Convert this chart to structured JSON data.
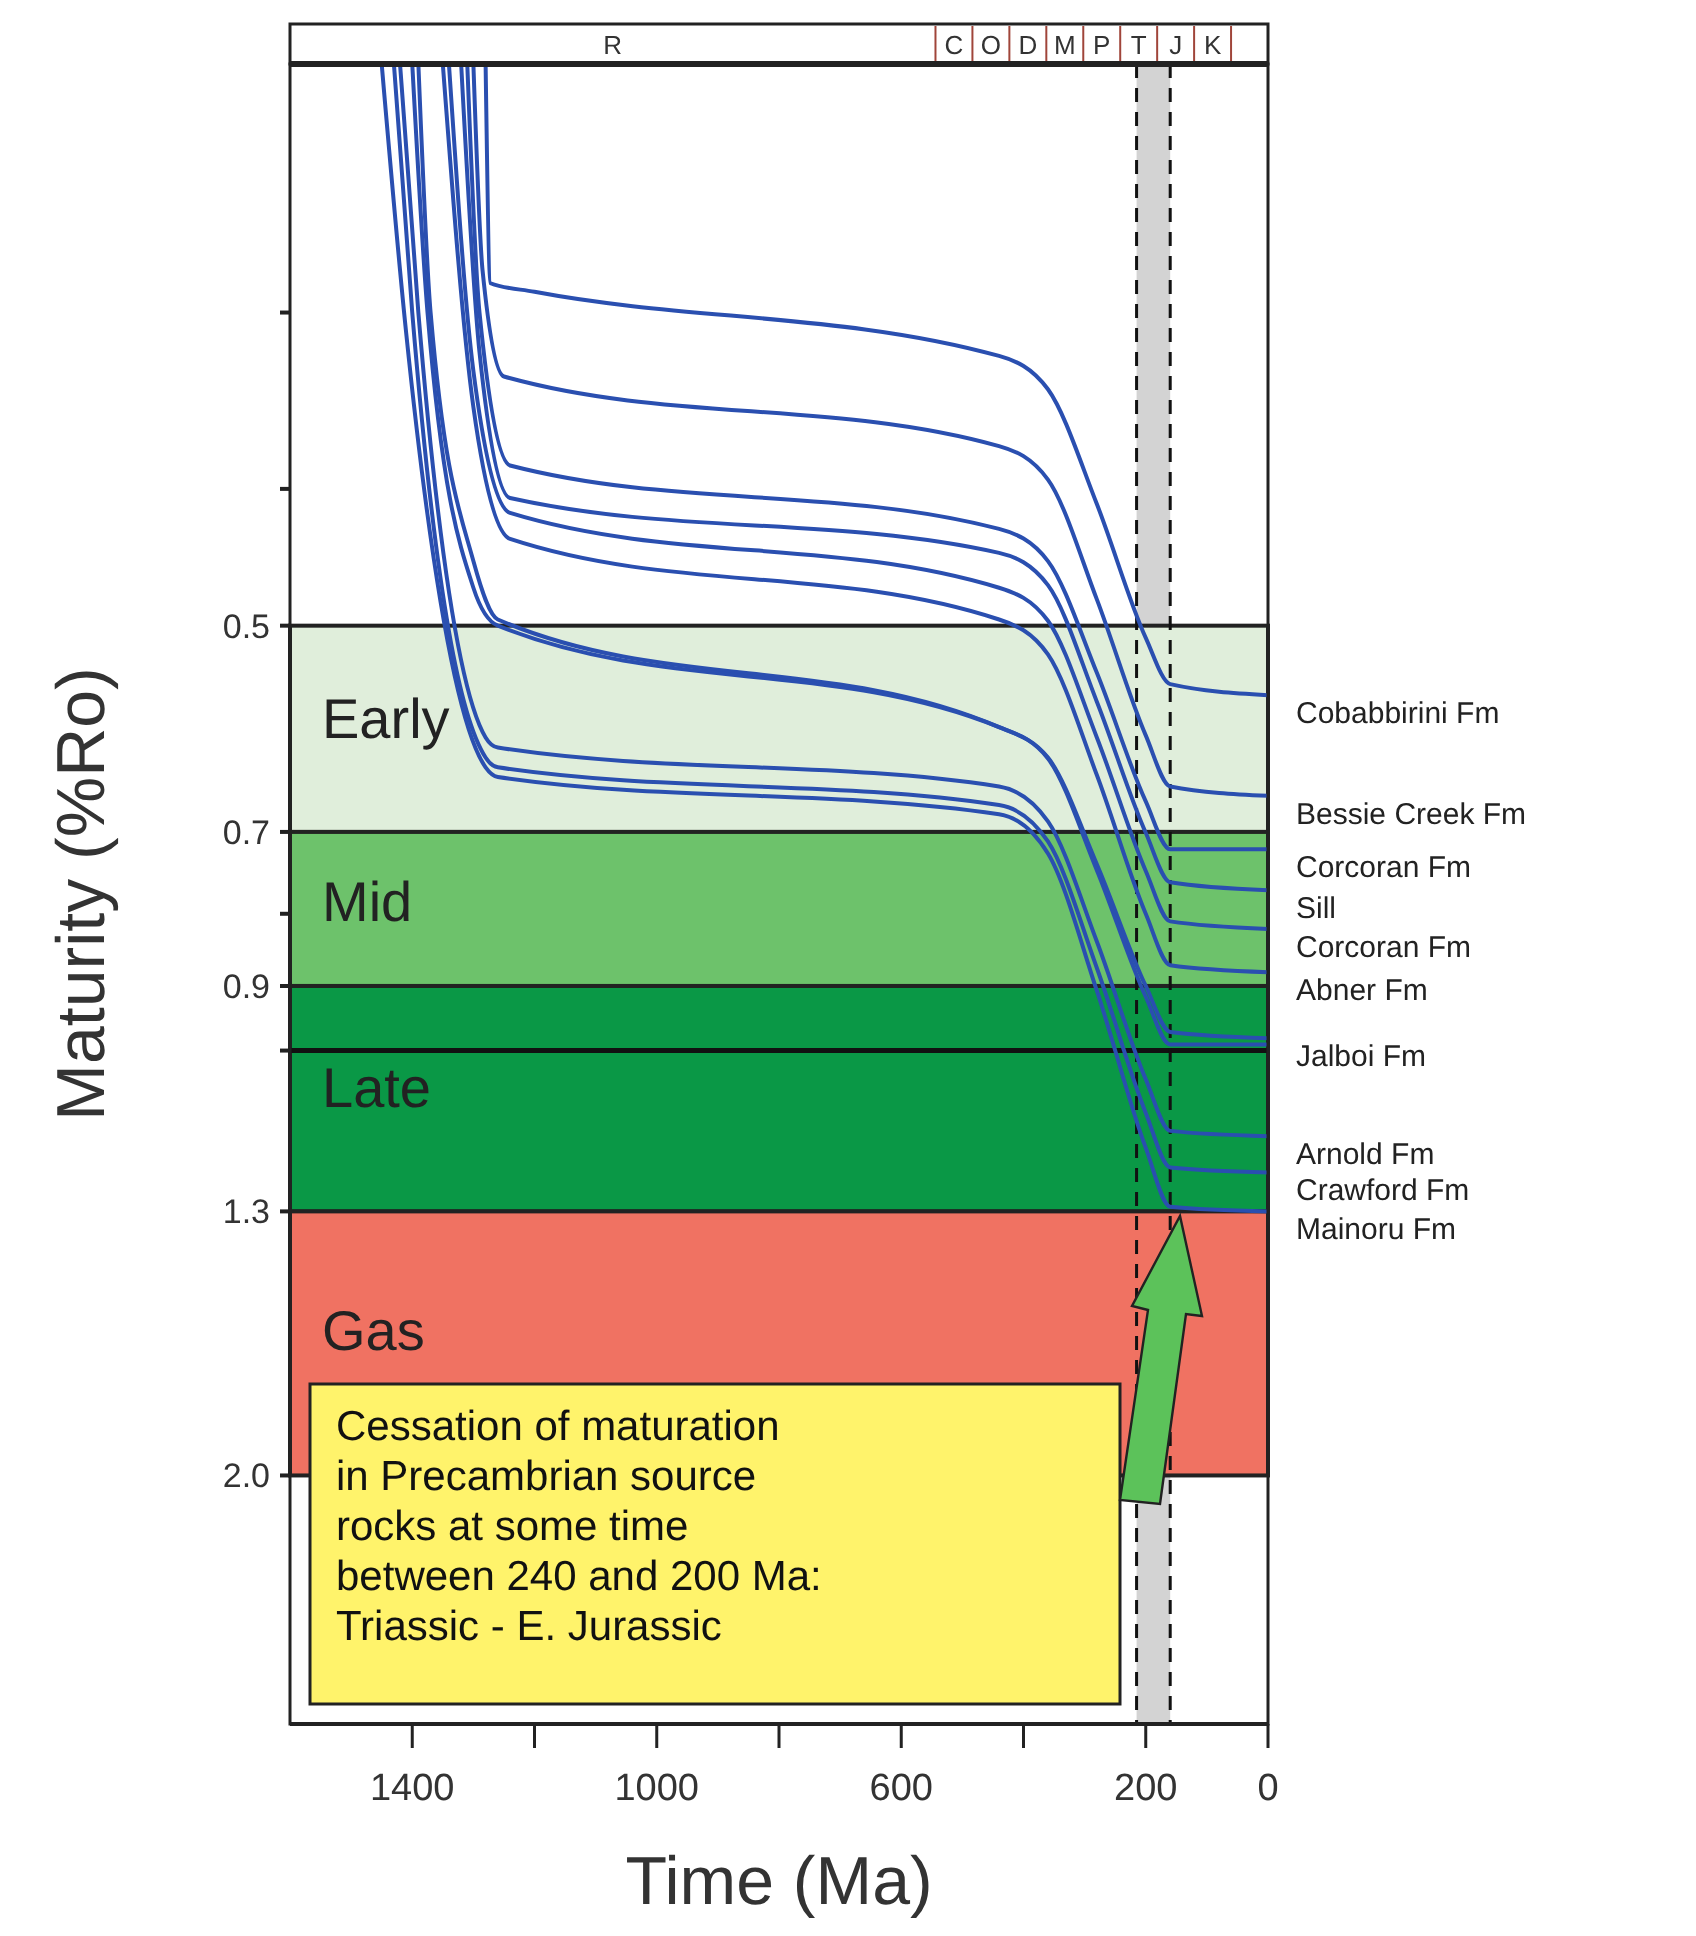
{
  "chart_data": {
    "type": "line",
    "xlabel": "Time (Ma)",
    "ylabel": "Maturity (%Ro)",
    "xlim": [
      1600,
      0
    ],
    "xticks": [
      {
        "value": 1400,
        "label": "1400"
      },
      {
        "value": 1200,
        "label": null
      },
      {
        "value": 1000,
        "label": "1000"
      },
      {
        "value": 800,
        "label": null
      },
      {
        "value": 600,
        "label": "600"
      },
      {
        "value": 400,
        "label": null
      },
      {
        "value": 200,
        "label": "200"
      },
      {
        "value": 0,
        "label": "0"
      }
    ],
    "ylim": [
      3,
      0.2
    ],
    "log": "y",
    "yticks": [
      {
        "value": 0.3,
        "label": null
      },
      {
        "value": 0.4,
        "label": null
      },
      {
        "value": 0.5,
        "label": "0.5"
      },
      {
        "value": 0.7,
        "label": "0.7"
      },
      {
        "value": 0.8,
        "label": null
      },
      {
        "value": 0.9,
        "label": "0.9"
      },
      {
        "value": 1.0,
        "label": null
      },
      {
        "value": 1.3,
        "label": "1.3"
      },
      {
        "value": 2,
        "label": "2.0"
      }
    ],
    "bands": [
      {
        "axis": "x",
        "from": 215,
        "to": 160,
        "color": "#d3d3d3"
      },
      {
        "axis": "y",
        "from": 0.5,
        "to": 0.7,
        "label": "Early",
        "color": "#e0eedb"
      },
      {
        "axis": "y",
        "from": 0.7,
        "to": 0.9,
        "label": "Mid",
        "color": "#6dc26b"
      },
      {
        "axis": "y",
        "from": 0.9,
        "to": 1.3,
        "label": "Late",
        "color": "#0a9846"
      },
      {
        "axis": "y",
        "from": 1.3,
        "to": 2,
        "label": "Gas",
        "color": "#f07262"
      }
    ],
    "ref_lines": [
      {
        "axis": "y",
        "value": 1.0,
        "color": "#111111",
        "line_style": "solid"
      },
      {
        "axis": "x",
        "value": 215,
        "color": "#111111",
        "line_style": "dashed"
      },
      {
        "axis": "x",
        "value": 160,
        "color": "#111111",
        "line_style": "dashed"
      }
    ],
    "annotations": [
      "Cessation of maturation\nin Precambrian source\nrocks at some time\nbetween 240 and 200 Ma:\nTriassic - E. Jurassic",
      "R",
      "C",
      "O",
      "D",
      "M",
      "P",
      "T",
      "J",
      "K"
    ],
    "series": [
      {
        "name": "Cobabbirini Fm",
        "color": "#2a4fb0",
        "x": [
          1280,
          1272,
          1200,
          440,
          360,
          280,
          200,
          160,
          0
        ],
        "values": [
          0.2,
          0.286,
          0.29,
          0.322,
          0.34,
          0.41,
          0.51,
          0.55,
          0.56
        ]
      },
      {
        "name": "Bessie Creek Fm",
        "color": "#2a4fb0",
        "x": [
          1300,
          1285,
          1250,
          440,
          360,
          280,
          200,
          160,
          0
        ],
        "values": [
          0.2,
          0.28,
          0.333,
          0.373,
          0.394,
          0.479,
          0.598,
          0.65,
          0.66
        ]
      },
      {
        "name": "Corcoran Fm",
        "color": "#2a4fb0",
        "x": [
          1310,
          1290,
          1240,
          440,
          360,
          280,
          200,
          160,
          0
        ],
        "values": [
          0.2,
          0.3,
          0.385,
          0.427,
          0.45,
          0.54,
          0.666,
          0.72,
          0.72
        ]
      },
      {
        "name": "Sill",
        "color": "#2a4fb0",
        "x": [
          1320,
          1290,
          1240,
          440,
          360,
          280,
          200,
          160,
          0
        ],
        "values": [
          0.2,
          0.32,
          0.406,
          0.444,
          0.468,
          0.566,
          0.701,
          0.76,
          0.77
        ]
      },
      {
        "name": "Corcoran Fm",
        "color": "#2a4fb0",
        "x": [
          1340,
          1300,
          1240,
          440,
          360,
          280,
          200,
          160,
          0
        ],
        "values": [
          0.2,
          0.33,
          0.416,
          0.47,
          0.496,
          0.6,
          0.746,
          0.81,
          0.82
        ]
      },
      {
        "name": "Abner Fm",
        "color": "#2a4fb0",
        "x": [
          1350,
          1300,
          1240,
          440,
          360,
          280,
          200,
          160,
          0
        ],
        "values": [
          0.2,
          0.35,
          0.434,
          0.495,
          0.524,
          0.638,
          0.8,
          0.87,
          0.88
        ]
      },
      {
        "name": "Jalboi Fm",
        "color": "#2a4fb0",
        "x": [
          1390,
          1370,
          1300,
          1260,
          440,
          360,
          280,
          200,
          160,
          0
        ],
        "values": [
          0.2,
          0.3,
          0.45,
          0.495,
          0.59,
          0.62,
          0.738,
          0.9,
          0.97,
          0.98
        ]
      },
      {
        "color": "#2a4fb0",
        "x": [
          1400,
          1375,
          1300,
          1260,
          440,
          360,
          280,
          200,
          160,
          0
        ],
        "values": [
          0.2,
          0.3,
          0.47,
          0.5,
          0.59,
          0.621,
          0.745,
          0.916,
          0.99,
          0.99
        ]
      },
      {
        "name": "Arnold Fm",
        "color": "#2a4fb0",
        "x": [
          1420,
          1390,
          1280,
          1260,
          440,
          360,
          280,
          200,
          160,
          0
        ],
        "values": [
          0.2,
          0.3,
          0.6,
          0.61,
          0.65,
          0.688,
          0.837,
          1.048,
          1.14,
          1.15
        ]
      },
      {
        "name": "Crawford Fm",
        "color": "#2a4fb0",
        "x": [
          1430,
          1400,
          1280,
          1260,
          440,
          360,
          280,
          200,
          160,
          0
        ],
        "values": [
          0.2,
          0.3,
          0.62,
          0.63,
          0.67,
          0.711,
          0.874,
          1.107,
          1.21,
          1.22
        ]
      },
      {
        "name": "Mainoru Fm",
        "color": "#2a4fb0",
        "x": [
          1450,
          1410,
          1280,
          1260,
          440,
          360,
          280,
          200,
          160,
          0
        ],
        "values": [
          0.2,
          0.31,
          0.63,
          0.64,
          0.68,
          0.725,
          0.907,
          1.172,
          1.29,
          1.3
        ]
      }
    ]
  }
}
